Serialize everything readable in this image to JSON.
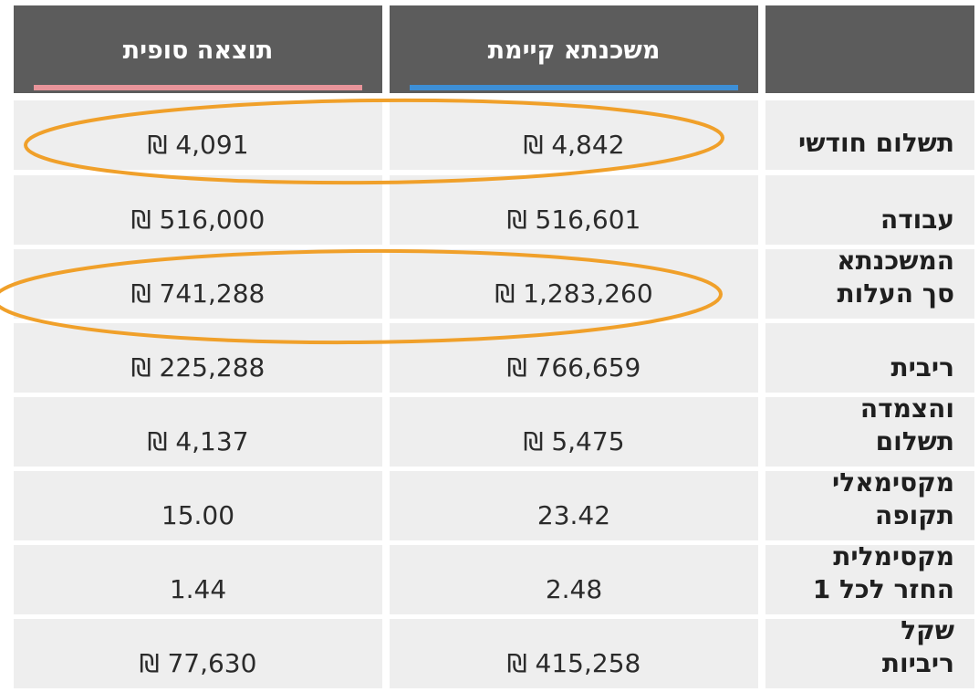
{
  "columns": {
    "final_result": "תוצאה סופית",
    "current_mortgage": "משכנתא קיימת"
  },
  "accent_colors": {
    "final_result_underline": "#e8949a",
    "current_mortgage_underline": "#3d8fd6",
    "highlight_oval": "#f0a02a",
    "header_bg": "#5c5c5c",
    "cell_bg": "#eeeeee"
  },
  "rows": [
    {
      "label_line1": "תשלום חודשי",
      "label_line2": "",
      "final": "4,091 ₪",
      "current": "4,842 ₪"
    },
    {
      "label_line1": "",
      "label_line2": "עבודה",
      "final": "516,000 ₪",
      "current": "516,601 ₪"
    },
    {
      "label_line1": "המשכנתא",
      "label_line2": "סך העלות",
      "final": "741,288 ₪",
      "current": "1,283,260 ₪"
    },
    {
      "label_line1": "",
      "label_line2": "ריבית",
      "final": "225,288 ₪",
      "current": "766,659 ₪"
    },
    {
      "label_line1": "והצמדה",
      "label_line2": "תשלום",
      "final": "4,137 ₪",
      "current": "5,475 ₪"
    },
    {
      "label_line1": "מקסימאלי",
      "label_line2": "תקופה",
      "final": "15.00",
      "current": "23.42"
    },
    {
      "label_line1": "מקסימלית",
      "label_line2": "החזר לכל 1",
      "final": "1.44",
      "current": "2.48"
    },
    {
      "label_line1": "שקל",
      "label_line2": "ריביות",
      "final": "77,630 ₪",
      "current": "415,258 ₪"
    }
  ]
}
